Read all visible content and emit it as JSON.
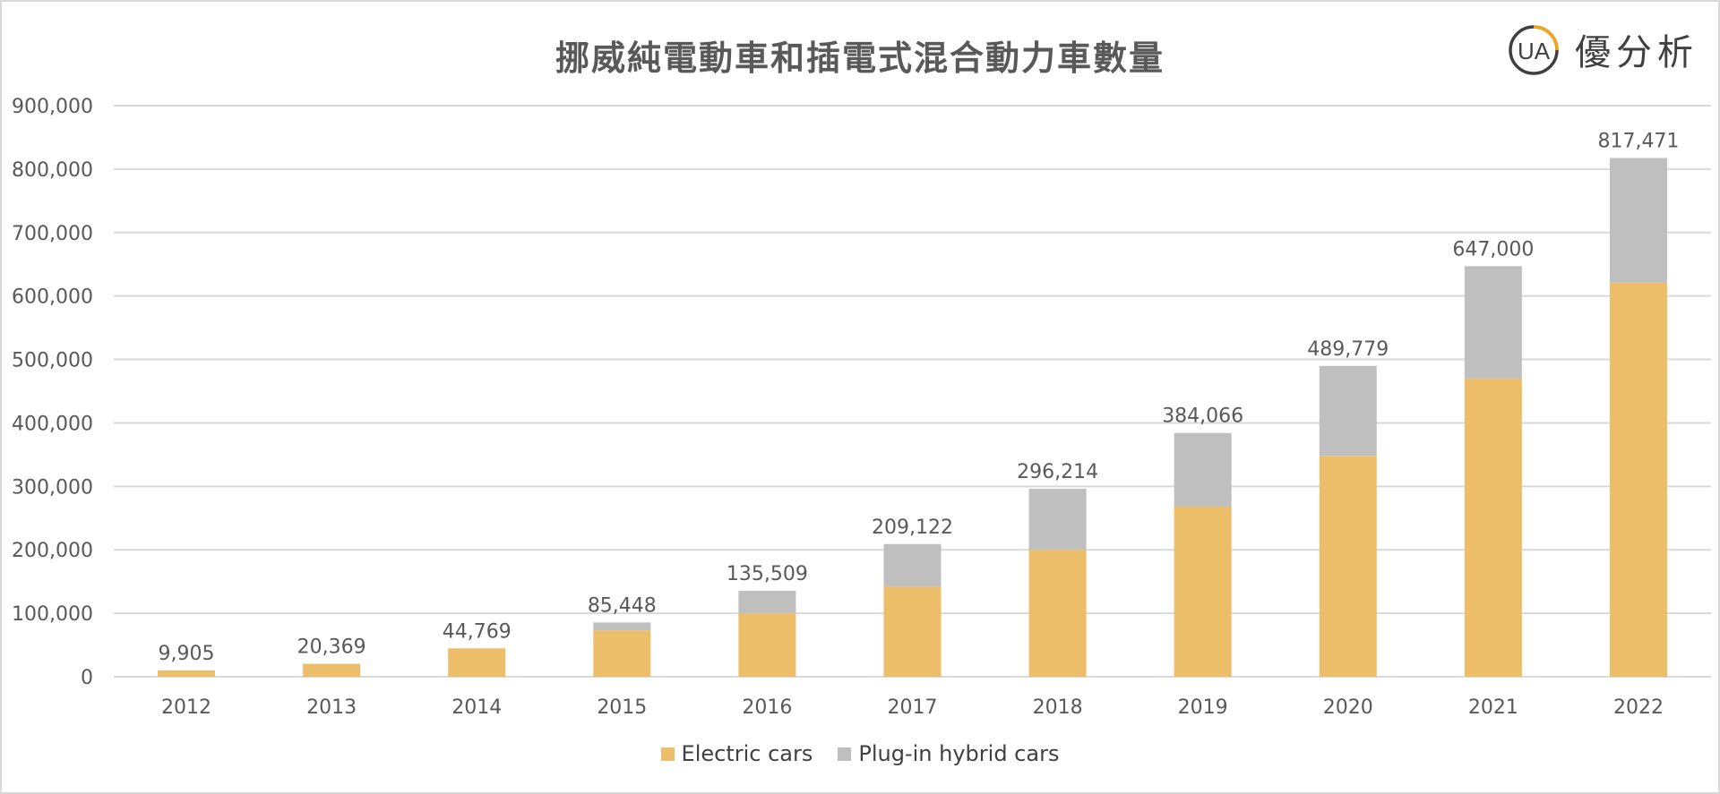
{
  "colors": {
    "electric": "#EDBE6A",
    "hybrid": "#BFBFBF",
    "grid": "#D9D9D9",
    "text": "#595959",
    "logo_ring": "#404040",
    "logo_accent": "#F2A51A"
  },
  "logo": {
    "mark": "UA",
    "text": "優分析"
  },
  "chart_data": {
    "type": "bar",
    "stacked": true,
    "title": "挪威純電動車和插電式混合動力車數量",
    "categories": [
      "2012",
      "2013",
      "2014",
      "2015",
      "2016",
      "2017",
      "2018",
      "2019",
      "2020",
      "2021",
      "2022"
    ],
    "series": [
      {
        "name": "Electric cars",
        "values": [
          9905,
          20369,
          44769,
          73000,
          100000,
          142000,
          200000,
          268000,
          348000,
          470000,
          621000
        ]
      },
      {
        "name": "Plug-in hybrid cars",
        "values": [
          0,
          0,
          0,
          12448,
          35509,
          67122,
          96214,
          116066,
          141779,
          177000,
          196471
        ]
      }
    ],
    "totals": [
      "9,905",
      "20,369",
      "44,769",
      "85,448",
      "135,509",
      "209,122",
      "296,214",
      "384,066",
      "489,779",
      "647,000",
      "817,471"
    ],
    "ylim": [
      0,
      900000
    ],
    "ytick_values": [
      0,
      100000,
      200000,
      300000,
      400000,
      500000,
      600000,
      700000,
      800000,
      900000
    ],
    "ytick_labels": [
      "0",
      "100,000",
      "200,000",
      "300,000",
      "400,000",
      "500,000",
      "600,000",
      "700,000",
      "800,000",
      "900,000"
    ],
    "grid": true,
    "legend": "bottom"
  }
}
